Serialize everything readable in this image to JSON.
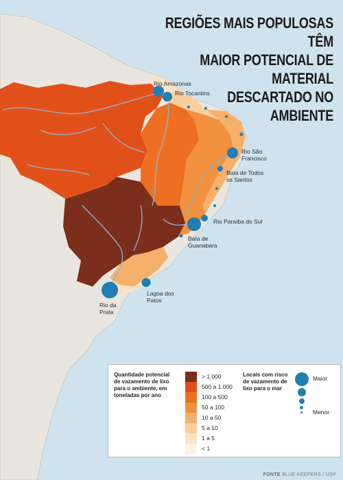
{
  "title": {
    "line1": "REGIÕES MAIS POPULOSAS TÊM",
    "line2": "MAIOR POTENCIAL DE MATERIAL",
    "line3": "DESCARTADO NO AMBIENTE"
  },
  "places": {
    "amazonas": "Rio Amazonas",
    "tocantins": "Rio Tocantins",
    "sao_francisco_1": "Rio São",
    "sao_francisco_2": "Francisco",
    "todos_santos_1": "Baía de Todos",
    "todos_santos_2": "os Santos",
    "paraiba": "Rio Paraíba do Sul",
    "guanabara_1": "Baía de",
    "guanabara_2": "Guanabara",
    "patos_1": "Lagoa dos",
    "patos_2": "Patos",
    "prata_1": "Rio da",
    "prata_2": "Prata"
  },
  "legend": {
    "quantity_title": [
      "Quantidade potencial",
      "de vazamento de lixo",
      "para o ambiente, em",
      "toneladas por ano"
    ],
    "classes": [
      {
        "label": "> 1.000",
        "color": "#7a2e1b"
      },
      {
        "label": "500 a 1.000",
        "color": "#e2501a"
      },
      {
        "label": "100 a 500",
        "color": "#ee6f22"
      },
      {
        "label": "50 a 100",
        "color": "#f2913e"
      },
      {
        "label": "10 a 50",
        "color": "#f5b06c"
      },
      {
        "label": "5 a 10",
        "color": "#f9cf9f"
      },
      {
        "label": "1 a 5",
        "color": "#fbe2c5"
      },
      {
        "label": "< 1",
        "color": "#fdf2e4"
      }
    ],
    "risk_title": [
      "Locais com risco",
      "de vazamento de",
      "lixo para o mar"
    ],
    "risk_max": "Maior",
    "risk_min": "Menor",
    "marker_color": "#1f7fb4"
  },
  "source": {
    "label": "FONTE",
    "text": "BLUE KEEPERS / USP"
  },
  "colors": {
    "ocean": "#cfe3ef",
    "land": "#e9e6df",
    "river": "#8fb4cd"
  }
}
